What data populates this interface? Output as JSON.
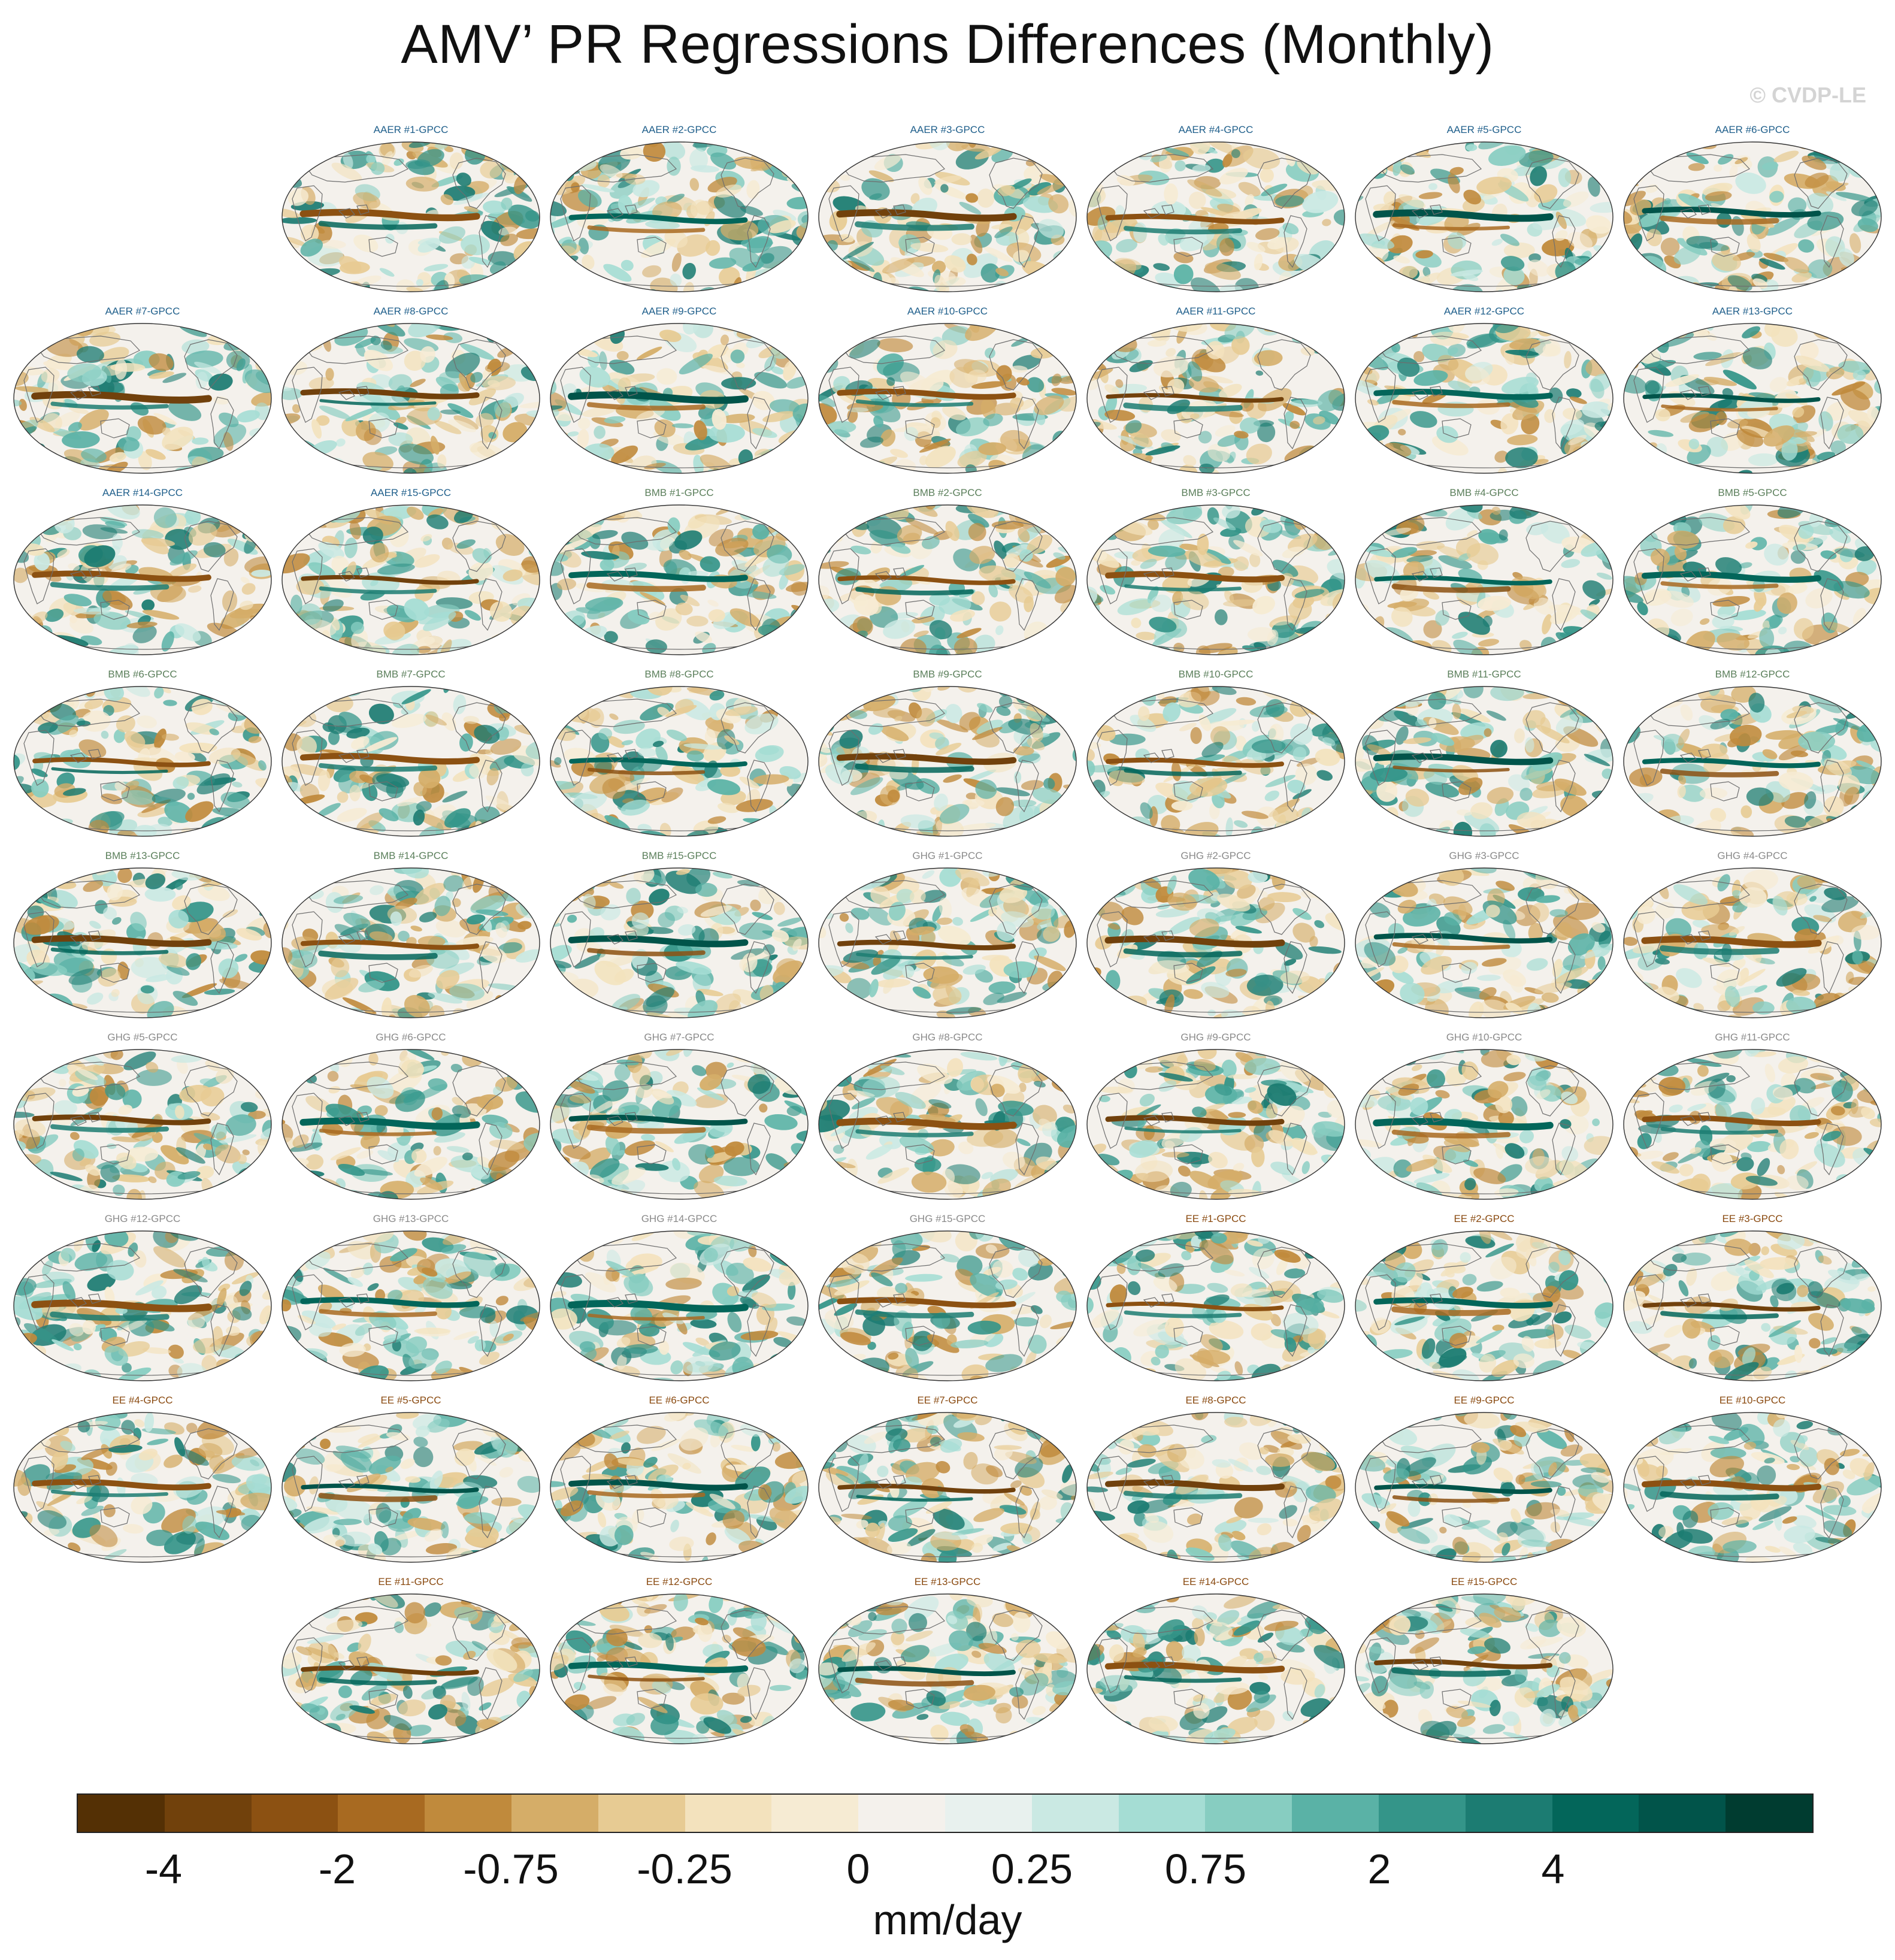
{
  "title": "AMV’ PR Regressions Differences (Monthly)",
  "copyright": "© CVDP-LE",
  "chart_data": {
    "type": "heatmap",
    "title": "AMV’ PR Regressions Differences (Monthly)",
    "projection": "Robinson-like global maps",
    "layout": "7 columns, panels listed in reading order; first row starts at column 2",
    "panels": [
      {
        "label": "AAER #1-GPCC",
        "group": "AAER"
      },
      {
        "label": "AAER #2-GPCC",
        "group": "AAER"
      },
      {
        "label": "AAER #3-GPCC",
        "group": "AAER"
      },
      {
        "label": "AAER #4-GPCC",
        "group": "AAER"
      },
      {
        "label": "AAER #5-GPCC",
        "group": "AAER"
      },
      {
        "label": "AAER #6-GPCC",
        "group": "AAER"
      },
      {
        "label": "AAER #7-GPCC",
        "group": "AAER"
      },
      {
        "label": "AAER #8-GPCC",
        "group": "AAER"
      },
      {
        "label": "AAER #9-GPCC",
        "group": "AAER"
      },
      {
        "label": "AAER #10-GPCC",
        "group": "AAER"
      },
      {
        "label": "AAER #11-GPCC",
        "group": "AAER"
      },
      {
        "label": "AAER #12-GPCC",
        "group": "AAER"
      },
      {
        "label": "AAER #13-GPCC",
        "group": "AAER"
      },
      {
        "label": "AAER #14-GPCC",
        "group": "AAER"
      },
      {
        "label": "AAER #15-GPCC",
        "group": "AAER"
      },
      {
        "label": "BMB #1-GPCC",
        "group": "BMB"
      },
      {
        "label": "BMB #2-GPCC",
        "group": "BMB"
      },
      {
        "label": "BMB #3-GPCC",
        "group": "BMB"
      },
      {
        "label": "BMB #4-GPCC",
        "group": "BMB"
      },
      {
        "label": "BMB #5-GPCC",
        "group": "BMB"
      },
      {
        "label": "BMB #6-GPCC",
        "group": "BMB"
      },
      {
        "label": "BMB #7-GPCC",
        "group": "BMB"
      },
      {
        "label": "BMB #8-GPCC",
        "group": "BMB"
      },
      {
        "label": "BMB #9-GPCC",
        "group": "BMB"
      },
      {
        "label": "BMB #10-GPCC",
        "group": "BMB"
      },
      {
        "label": "BMB #11-GPCC",
        "group": "BMB"
      },
      {
        "label": "BMB #12-GPCC",
        "group": "BMB"
      },
      {
        "label": "BMB #13-GPCC",
        "group": "BMB"
      },
      {
        "label": "BMB #14-GPCC",
        "group": "BMB"
      },
      {
        "label": "BMB #15-GPCC",
        "group": "BMB"
      },
      {
        "label": "GHG #1-GPCC",
        "group": "GHG"
      },
      {
        "label": "GHG #2-GPCC",
        "group": "GHG"
      },
      {
        "label": "GHG #3-GPCC",
        "group": "GHG"
      },
      {
        "label": "GHG #4-GPCC",
        "group": "GHG"
      },
      {
        "label": "GHG #5-GPCC",
        "group": "GHG"
      },
      {
        "label": "GHG #6-GPCC",
        "group": "GHG"
      },
      {
        "label": "GHG #7-GPCC",
        "group": "GHG"
      },
      {
        "label": "GHG #8-GPCC",
        "group": "GHG"
      },
      {
        "label": "GHG #9-GPCC",
        "group": "GHG"
      },
      {
        "label": "GHG #10-GPCC",
        "group": "GHG"
      },
      {
        "label": "GHG #11-GPCC",
        "group": "GHG"
      },
      {
        "label": "GHG #12-GPCC",
        "group": "GHG"
      },
      {
        "label": "GHG #13-GPCC",
        "group": "GHG"
      },
      {
        "label": "GHG #14-GPCC",
        "group": "GHG"
      },
      {
        "label": "GHG #15-GPCC",
        "group": "GHG"
      },
      {
        "label": "EE #1-GPCC",
        "group": "EE"
      },
      {
        "label": "EE #2-GPCC",
        "group": "EE"
      },
      {
        "label": "EE #3-GPCC",
        "group": "EE"
      },
      {
        "label": "EE #4-GPCC",
        "group": "EE"
      },
      {
        "label": "EE #5-GPCC",
        "group": "EE"
      },
      {
        "label": "EE #6-GPCC",
        "group": "EE"
      },
      {
        "label": "EE #7-GPCC",
        "group": "EE"
      },
      {
        "label": "EE #8-GPCC",
        "group": "EE"
      },
      {
        "label": "EE #9-GPCC",
        "group": "EE"
      },
      {
        "label": "EE #10-GPCC",
        "group": "EE"
      },
      {
        "label": "EE #11-GPCC",
        "group": "EE"
      },
      {
        "label": "EE #12-GPCC",
        "group": "EE"
      },
      {
        "label": "EE #13-GPCC",
        "group": "EE"
      },
      {
        "label": "EE #14-GPCC",
        "group": "EE"
      },
      {
        "label": "EE #15-GPCC",
        "group": "EE"
      }
    ],
    "group_colors": {
      "AAER": "#1f5f8b",
      "BMB": "#5b7f5b",
      "GHG": "#8a8a8a",
      "EE": "#8a4a10"
    },
    "colorbar": {
      "label": "mm/day",
      "ticks": [
        {
          "label": "-4",
          "boundary": 1
        },
        {
          "label": "-2",
          "boundary": 3
        },
        {
          "label": "-0.75",
          "boundary": 5
        },
        {
          "label": "-0.25",
          "boundary": 7
        },
        {
          "label": "0",
          "boundary": 9
        },
        {
          "label": "0.25",
          "boundary": 11
        },
        {
          "label": "0.75",
          "boundary": 13
        },
        {
          "label": "2",
          "boundary": 15
        },
        {
          "label": "4",
          "boundary": 17
        }
      ],
      "colors": [
        "#543005",
        "#71410c",
        "#8c5112",
        "#a86a21",
        "#c08a3c",
        "#d5ad68",
        "#e7cb93",
        "#f3e2bd",
        "#f6ebd3",
        "#f4f1ec",
        "#e8f1ee",
        "#cae9e3",
        "#a5ddd4",
        "#87cdc1",
        "#5ab2a6",
        "#349589",
        "#1c7c72",
        "#03665a",
        "#01544a",
        "#003c30"
      ]
    }
  }
}
